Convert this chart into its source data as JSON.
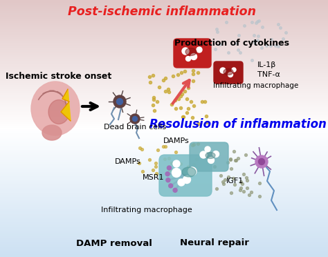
{
  "title_top": "Post-ischemic inflammation",
  "title_mid": "Resolusion of inflammation",
  "title_bottom_left": "DAMP removal",
  "title_bottom_right": "Neural repair",
  "label_ischemic": "Ischemic stroke onset",
  "label_dead": "Dead brain cells",
  "label_damps_upper": "DAMPs",
  "label_damps_lower": "DAMPs",
  "label_msr1": "MSR1",
  "label_igf1": "IGF1",
  "label_infiltrating_upper": "Infiltrating macrophage",
  "label_infiltrating_lower": "Infiltrating macrophage",
  "label_production": "Production of cytokines",
  "label_il1b": "IL-1β",
  "label_tnfa": "TNF-α",
  "title_top_color": "#e82020",
  "title_mid_color": "#0000ee",
  "damp_dot_color": "#c8a830",
  "damp_dot_color2": "#a8b8d0",
  "igf_dot_color": "#909878",
  "brain_color": "#e8b0b0",
  "brain_detail_color": "#c06060",
  "arrow_pink_color": "#e05050",
  "mac_red_color": "#c02020",
  "mac_teal_color": "#80c0c8",
  "mac_teal2_color": "#70b0b8",
  "neuron_purple_color": "#b878c0",
  "neuron_axon_color": "#6090c0",
  "dead_neuron_color": "#604040",
  "dead_axon_color": "#7090b0",
  "white": "#ffffff"
}
